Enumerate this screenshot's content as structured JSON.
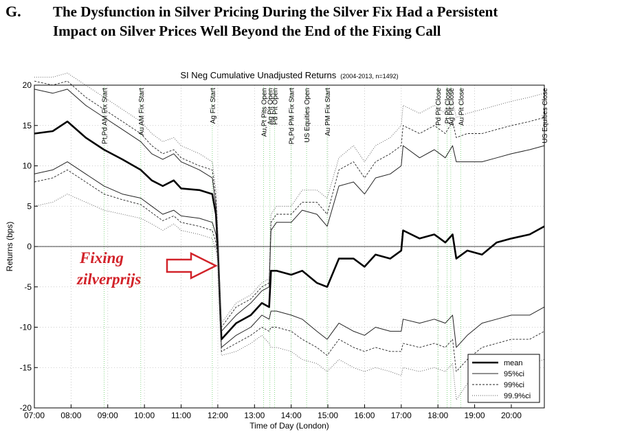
{
  "heading": {
    "letter": "G.",
    "line1": "The Dysfunction in Silver Pricing During the Silver Fix Had a Persistent",
    "line2": "Impact on Silver Prices Well Beyond the End of the Fixing Call"
  },
  "annotation": {
    "line1": "Fixing",
    "line2": "zilverprijs",
    "color": "#d2232a"
  },
  "chart_data": {
    "type": "line",
    "title": "SI Neg Cumulative Unadjusted Returns",
    "title_suffix": "(2004-2013, n=1492)",
    "xlabel": "Time of Day (London)",
    "ylabel": "Returns (bps)",
    "xlim": [
      7.0,
      20.9
    ],
    "ylim": [
      -20,
      20
    ],
    "x_ticks": [
      7,
      8,
      9,
      10,
      11,
      12,
      13,
      14,
      15,
      16,
      17,
      18,
      19,
      20
    ],
    "x_tick_labels": [
      "07:00",
      "08:00",
      "09:00",
      "10:00",
      "11:00",
      "12:00",
      "13:00",
      "14:00",
      "15:00",
      "16:00",
      "17:00",
      "18:00",
      "19:00",
      "20:00"
    ],
    "y_ticks": [
      -20,
      -15,
      -10,
      -5,
      0,
      5,
      10,
      15,
      20
    ],
    "grid": true,
    "legend_position": "bottom-right",
    "event_lines": [
      {
        "x": 8.9,
        "label": "Pt,Pd AM Fix Start"
      },
      {
        "x": 9.9,
        "label": "Au AM Fix Start"
      },
      {
        "x": 11.85,
        "label": "Ag Fix Start"
      },
      {
        "x": 13.25,
        "label": "Au,Pt Pits Open"
      },
      {
        "x": 13.42,
        "label": "Ag Pit Open"
      },
      {
        "x": 13.55,
        "label": "Pd Pit Open"
      },
      {
        "x": 14.0,
        "label": "Pt,Pd PM Fix Start"
      },
      {
        "x": 14.42,
        "label": "US Equities Open"
      },
      {
        "x": 14.98,
        "label": "Au PM Fix Start"
      },
      {
        "x": 18.0,
        "label": "Pd Pit Close"
      },
      {
        "x": 18.25,
        "label": "Pt Pit Close"
      },
      {
        "x": 18.35,
        "label": "Ag Pit Close"
      },
      {
        "x": 18.62,
        "label": "Au Pit Close"
      },
      {
        "x": 20.9,
        "label": "US Equities Close"
      }
    ],
    "x": [
      7.0,
      7.5,
      7.9,
      8.4,
      8.9,
      9.4,
      9.9,
      10.2,
      10.5,
      10.8,
      11.0,
      11.5,
      11.85,
      11.95,
      12.0,
      12.05,
      12.1,
      12.5,
      12.9,
      13.2,
      13.4,
      13.45,
      13.6,
      14.0,
      14.3,
      14.7,
      14.98,
      15.3,
      15.7,
      16.0,
      16.3,
      16.7,
      17.0,
      17.05,
      17.5,
      17.9,
      18.2,
      18.4,
      18.5,
      18.8,
      19.2,
      19.6,
      20.0,
      20.5,
      20.9
    ],
    "series": [
      {
        "name": "mean",
        "style": "solid-thick",
        "values": [
          14.0,
          14.3,
          15.5,
          13.5,
          12.0,
          10.8,
          9.5,
          8.2,
          7.5,
          8.2,
          7.2,
          7.0,
          6.5,
          4.0,
          0.0,
          -6.0,
          -11.5,
          -9.5,
          -8.5,
          -7.0,
          -7.5,
          -3.0,
          -3.0,
          -3.5,
          -3.0,
          -4.5,
          -5.0,
          -1.5,
          -1.5,
          -2.5,
          -1.0,
          -1.5,
          -0.5,
          2.0,
          1.0,
          1.5,
          0.5,
          1.5,
          -1.5,
          -0.5,
          -1.0,
          0.5,
          1.0,
          1.5,
          2.5
        ]
      },
      {
        "name": "95%ci",
        "style": "solid-thin",
        "values": [
          19.5,
          19.0,
          19.5,
          17.5,
          16.0,
          14.5,
          13.0,
          11.5,
          10.8,
          11.5,
          10.5,
          9.5,
          8.5,
          5.0,
          1.0,
          -5.0,
          -10.5,
          -8.5,
          -7.0,
          -5.5,
          -5.0,
          2.0,
          3.0,
          3.0,
          4.5,
          4.0,
          2.5,
          7.5,
          8.0,
          6.5,
          8.5,
          9.0,
          10.0,
          12.5,
          11.0,
          12.0,
          11.0,
          12.5,
          10.5,
          10.5,
          10.5,
          11.0,
          11.5,
          12.0,
          12.5
        ]
      },
      {
        "name": "99%ci",
        "style": "dashed",
        "values": [
          20.5,
          20.0,
          20.5,
          18.5,
          17.0,
          15.5,
          14.0,
          12.5,
          11.5,
          12.0,
          11.0,
          10.0,
          9.5,
          6.0,
          1.5,
          -4.5,
          -10.0,
          -7.5,
          -6.5,
          -5.0,
          -4.5,
          3.0,
          4.0,
          4.0,
          5.5,
          5.5,
          4.0,
          9.5,
          10.5,
          8.5,
          10.5,
          11.5,
          12.5,
          15.0,
          14.0,
          15.0,
          14.0,
          15.5,
          13.5,
          14.0,
          14.0,
          14.5,
          15.0,
          15.5,
          16.0
        ]
      },
      {
        "name": "99.9%ci",
        "style": "dotted",
        "values": [
          21.0,
          21.0,
          21.5,
          20.0,
          18.5,
          17.0,
          15.5,
          14.0,
          13.0,
          13.5,
          12.5,
          11.5,
          10.5,
          7.0,
          2.0,
          -4.0,
          -9.5,
          -7.0,
          -6.0,
          -4.5,
          -4.0,
          4.0,
          5.0,
          5.0,
          7.0,
          7.0,
          6.0,
          11.0,
          12.5,
          10.5,
          12.5,
          13.5,
          15.0,
          17.5,
          16.5,
          17.5,
          16.5,
          18.0,
          16.0,
          16.5,
          17.0,
          17.5,
          18.0,
          18.5,
          19.0
        ]
      },
      {
        "name": "lower 95%ci",
        "style": "solid-thin",
        "values": [
          9.0,
          9.5,
          10.5,
          9.0,
          7.5,
          6.5,
          6.0,
          5.0,
          4.0,
          4.5,
          3.8,
          3.5,
          3.0,
          1.5,
          -1.0,
          -7.5,
          -12.5,
          -11.0,
          -10.0,
          -8.5,
          -9.0,
          -8.0,
          -8.0,
          -8.5,
          -9.0,
          -10.5,
          -11.5,
          -9.5,
          -10.5,
          -11.0,
          -10.0,
          -10.5,
          -10.5,
          -9.0,
          -9.5,
          -9.0,
          -9.5,
          -8.5,
          -12.5,
          -11.0,
          -9.5,
          -9.0,
          -8.5,
          -8.5,
          -7.5
        ]
      },
      {
        "name": "lower 99%ci",
        "style": "dashed",
        "values": [
          8.0,
          8.5,
          9.5,
          8.0,
          6.5,
          5.8,
          5.2,
          4.2,
          3.2,
          3.8,
          3.0,
          2.5,
          2.0,
          0.5,
          -1.5,
          -8.0,
          -13.0,
          -12.0,
          -11.0,
          -10.0,
          -10.5,
          -10.0,
          -10.0,
          -10.5,
          -11.5,
          -12.5,
          -13.5,
          -11.5,
          -12.5,
          -13.0,
          -12.5,
          -13.0,
          -13.0,
          -12.0,
          -12.5,
          -12.0,
          -12.5,
          -11.5,
          -15.5,
          -14.0,
          -12.5,
          -12.0,
          -11.5,
          -11.5,
          -10.5
        ]
      },
      {
        "name": "lower 99.9%ci",
        "style": "dotted",
        "values": [
          5.0,
          5.5,
          6.5,
          5.5,
          4.5,
          4.0,
          3.5,
          2.8,
          2.0,
          2.8,
          2.0,
          1.5,
          1.0,
          -0.5,
          -2.0,
          -8.5,
          -13.5,
          -13.0,
          -12.0,
          -11.0,
          -12.0,
          -12.5,
          -12.5,
          -13.0,
          -14.0,
          -14.5,
          -15.5,
          -14.0,
          -15.0,
          -15.5,
          -15.0,
          -15.5,
          -16.0,
          -15.0,
          -15.5,
          -15.0,
          -15.5,
          -14.5,
          -19.0,
          -17.0,
          -15.5,
          -15.5,
          -15.0,
          -14.5,
          -14.0
        ]
      }
    ],
    "legend": [
      {
        "label": "mean",
        "style": "solid-thick"
      },
      {
        "label": "95%ci",
        "style": "solid-thin"
      },
      {
        "label": "99%ci",
        "style": "dashed"
      },
      {
        "label": "99.9%ci",
        "style": "dotted"
      }
    ]
  }
}
